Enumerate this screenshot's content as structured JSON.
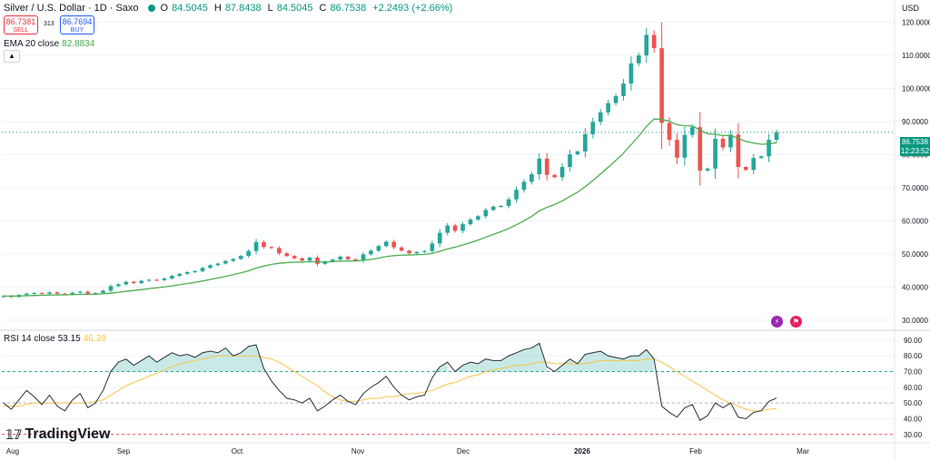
{
  "header": {
    "title": "Silver / U.S. Dollar · 1D · Saxo",
    "o_label": "O",
    "o_value": "84.5045",
    "h_label": "H",
    "h_value": "87.8438",
    "l_label": "L",
    "l_value": "84.5045",
    "c_label": "C",
    "c_value": "86.7538",
    "change": "+2.2493 (+2.66%)"
  },
  "trade": {
    "sell_price": "86.7381",
    "sell_label": "SELL",
    "spread": "313",
    "buy_price": "86.7694",
    "buy_label": "BUY"
  },
  "ema_legend": {
    "label": "EMA 20 close",
    "value": "82.8834"
  },
  "rsi_legend": {
    "label": "RSI 14 close",
    "value": "53.15",
    "ma_value": "46.39"
  },
  "currency": "USD",
  "price_tag": {
    "price": "86.7538",
    "countdown": "12:23:52"
  },
  "logo": {
    "text": "TradingView"
  },
  "icons": [
    "flash-icon",
    "flag-icon"
  ],
  "colors": {
    "up": "#26a69a",
    "down": "#ef5350",
    "ema": "#4caf50",
    "rsi": "#2a2e39",
    "rsi_ma": "#f7c548"
  },
  "chart_data": [
    {
      "type": "candlestick",
      "x_ticks": [
        "Aug",
        "Sep",
        "Oct",
        "Nov",
        "Dec",
        "2026",
        "Feb",
        "Mar"
      ],
      "y_ticks": [
        "30.0000",
        "40.0000",
        "50.0000",
        "60.0000",
        "70.0000",
        "80.0000",
        "90.0000",
        "100.0000",
        "110.0000",
        "120.0000"
      ],
      "ylim": [
        27.5,
        124
      ],
      "series": [
        {
          "close": [
            37.3,
            37.0,
            37.6,
            38.0,
            38.2,
            38.0,
            38.4,
            38.0,
            37.8,
            38.3,
            38.6,
            38.0,
            38.2,
            38.9,
            40.3,
            40.8,
            41.6,
            41.2,
            41.9,
            42.2,
            42.1,
            42.6,
            43.4,
            44.0,
            44.5,
            44.8,
            45.8,
            46.6,
            47.1,
            47.9,
            48.5,
            49.4,
            50.9,
            53.6,
            52.1,
            51.8,
            50.2,
            49.4,
            48.7,
            48.0,
            48.9,
            47.0,
            47.7,
            48.3,
            49.2,
            48.4,
            48.0,
            49.9,
            51.0,
            52.4,
            53.7,
            52.0,
            51.0,
            50.2,
            50.6,
            50.9,
            53.2,
            56.4,
            58.6,
            57.0,
            59.0,
            60.4,
            61.4,
            63.3,
            64.3,
            64.5,
            66.5,
            69.4,
            71.8,
            74.1,
            78.8,
            73.9,
            73.2,
            76.3,
            80.1,
            81.0,
            86.2,
            89.9,
            92.8,
            95.6,
            97.7,
            101.5,
            107.6,
            110.0,
            116.2,
            112.2,
            89.6,
            84.5,
            79.1,
            86.0,
            88.3,
            75.2,
            75.8,
            84.8,
            82.2,
            86.1,
            76.3,
            75.4,
            79.0,
            79.5,
            84.5,
            86.75
          ]
        }
      ]
    },
    {
      "type": "line",
      "x_ticks": [
        "Aug",
        "Sep",
        "Oct",
        "Nov",
        "Dec",
        "2026",
        "Feb",
        "Mar"
      ],
      "y_ticks": [
        "30.00",
        "40.00",
        "50.00",
        "60.00",
        "70.00",
        "80.00",
        "90.00"
      ],
      "ylim": [
        27,
        94
      ],
      "series": [
        {
          "name": "RSI 14 close",
          "values": [
            50.0,
            46.0,
            52.0,
            58.0,
            54.0,
            49.0,
            55.0,
            48.0,
            45.0,
            52.0,
            56.0,
            47.0,
            50.0,
            58.0,
            70.0,
            76.0,
            78.0,
            74.0,
            77.0,
            80.0,
            76.0,
            79.0,
            82.0,
            80.0,
            81.0,
            79.0,
            82.0,
            83.0,
            82.0,
            85.0,
            80.0,
            82.0,
            86.0,
            87.0,
            72.0,
            64.0,
            58.0,
            53.0,
            52.0,
            50.0,
            53.0,
            45.0,
            48.0,
            52.0,
            55.0,
            51.0,
            49.0,
            56.0,
            60.0,
            63.0,
            67.0,
            60.0,
            55.0,
            52.0,
            54.0,
            55.0,
            66.0,
            73.0,
            76.0,
            70.0,
            74.0,
            76.0,
            75.0,
            78.0,
            77.0,
            77.0,
            80.0,
            82.0,
            84.0,
            85.0,
            88.0,
            73.0,
            70.0,
            74.0,
            78.0,
            75.0,
            81.0,
            82.0,
            83.0,
            80.0,
            79.0,
            78.0,
            80.0,
            80.0,
            84.0,
            78.0,
            48.0,
            44.0,
            41.0,
            47.0,
            49.0,
            39.0,
            42.0,
            50.0,
            47.0,
            50.0,
            41.0,
            40.0,
            44.0,
            45.0,
            51.0,
            53.15
          ]
        },
        {
          "name": "RSI MA",
          "values": [
            48.0,
            48.0,
            48.0,
            49.0,
            50.0,
            50.0,
            50.0,
            50.0,
            50.0,
            50.0,
            50.0,
            50.0,
            51.0,
            52.0,
            55.0,
            58.0,
            61.0,
            63.0,
            65.0,
            67.0,
            69.0,
            71.0,
            73.0,
            75.0,
            76.0,
            77.0,
            78.0,
            79.0,
            80.0,
            80.0,
            80.0,
            80.0,
            80.0,
            80.0,
            79.0,
            78.0,
            76.0,
            73.0,
            70.0,
            67.0,
            64.0,
            61.0,
            57.0,
            54.0,
            52.0,
            51.0,
            51.0,
            52.0,
            53.0,
            53.0,
            54.0,
            54.0,
            55.0,
            56.0,
            56.0,
            57.0,
            58.0,
            60.0,
            62.0,
            63.0,
            65.0,
            67.0,
            68.0,
            70.0,
            71.0,
            72.0,
            73.0,
            74.0,
            74.0,
            75.0,
            76.0,
            76.0,
            75.0,
            75.0,
            75.0,
            75.0,
            75.0,
            76.0,
            77.0,
            77.0,
            77.0,
            77.0,
            77.0,
            77.0,
            78.0,
            78.0,
            76.0,
            73.0,
            70.0,
            67.0,
            64.0,
            61.0,
            58.0,
            55.0,
            52.0,
            50.0,
            48.0,
            46.0,
            45.0,
            45.0,
            46.0,
            46.39
          ]
        }
      ]
    }
  ]
}
